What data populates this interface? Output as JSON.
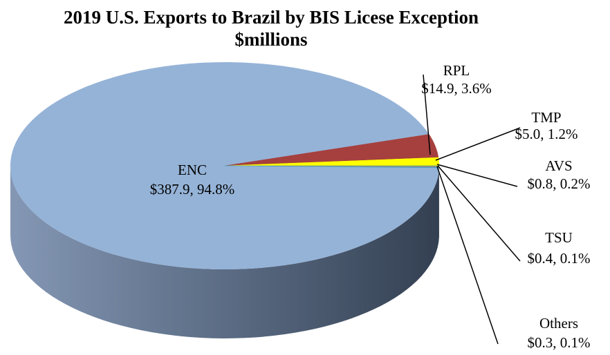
{
  "chart_data": {
    "type": "pie",
    "title": "2019 U.S. Exports to Brazil by BIS Licese Exception",
    "subtitle": "$millions",
    "categories": [
      "ENC",
      "RPL",
      "TMP",
      "AVS",
      "TSU",
      "Others"
    ],
    "values": [
      387.9,
      14.9,
      5.0,
      0.8,
      0.4,
      0.3
    ],
    "value_labels": [
      "$387.9, 94.8%",
      "$14.9, 3.6%",
      "$5.0, 1.2%",
      "$0.8, 0.2%",
      "$0.4, 0.1%",
      "$0.3, 0.1%"
    ],
    "colors": [
      "#95b3d7",
      "#a5403e",
      "#ffff00",
      "#9bbb59",
      "#8064a2",
      "#4bacc6"
    ]
  }
}
